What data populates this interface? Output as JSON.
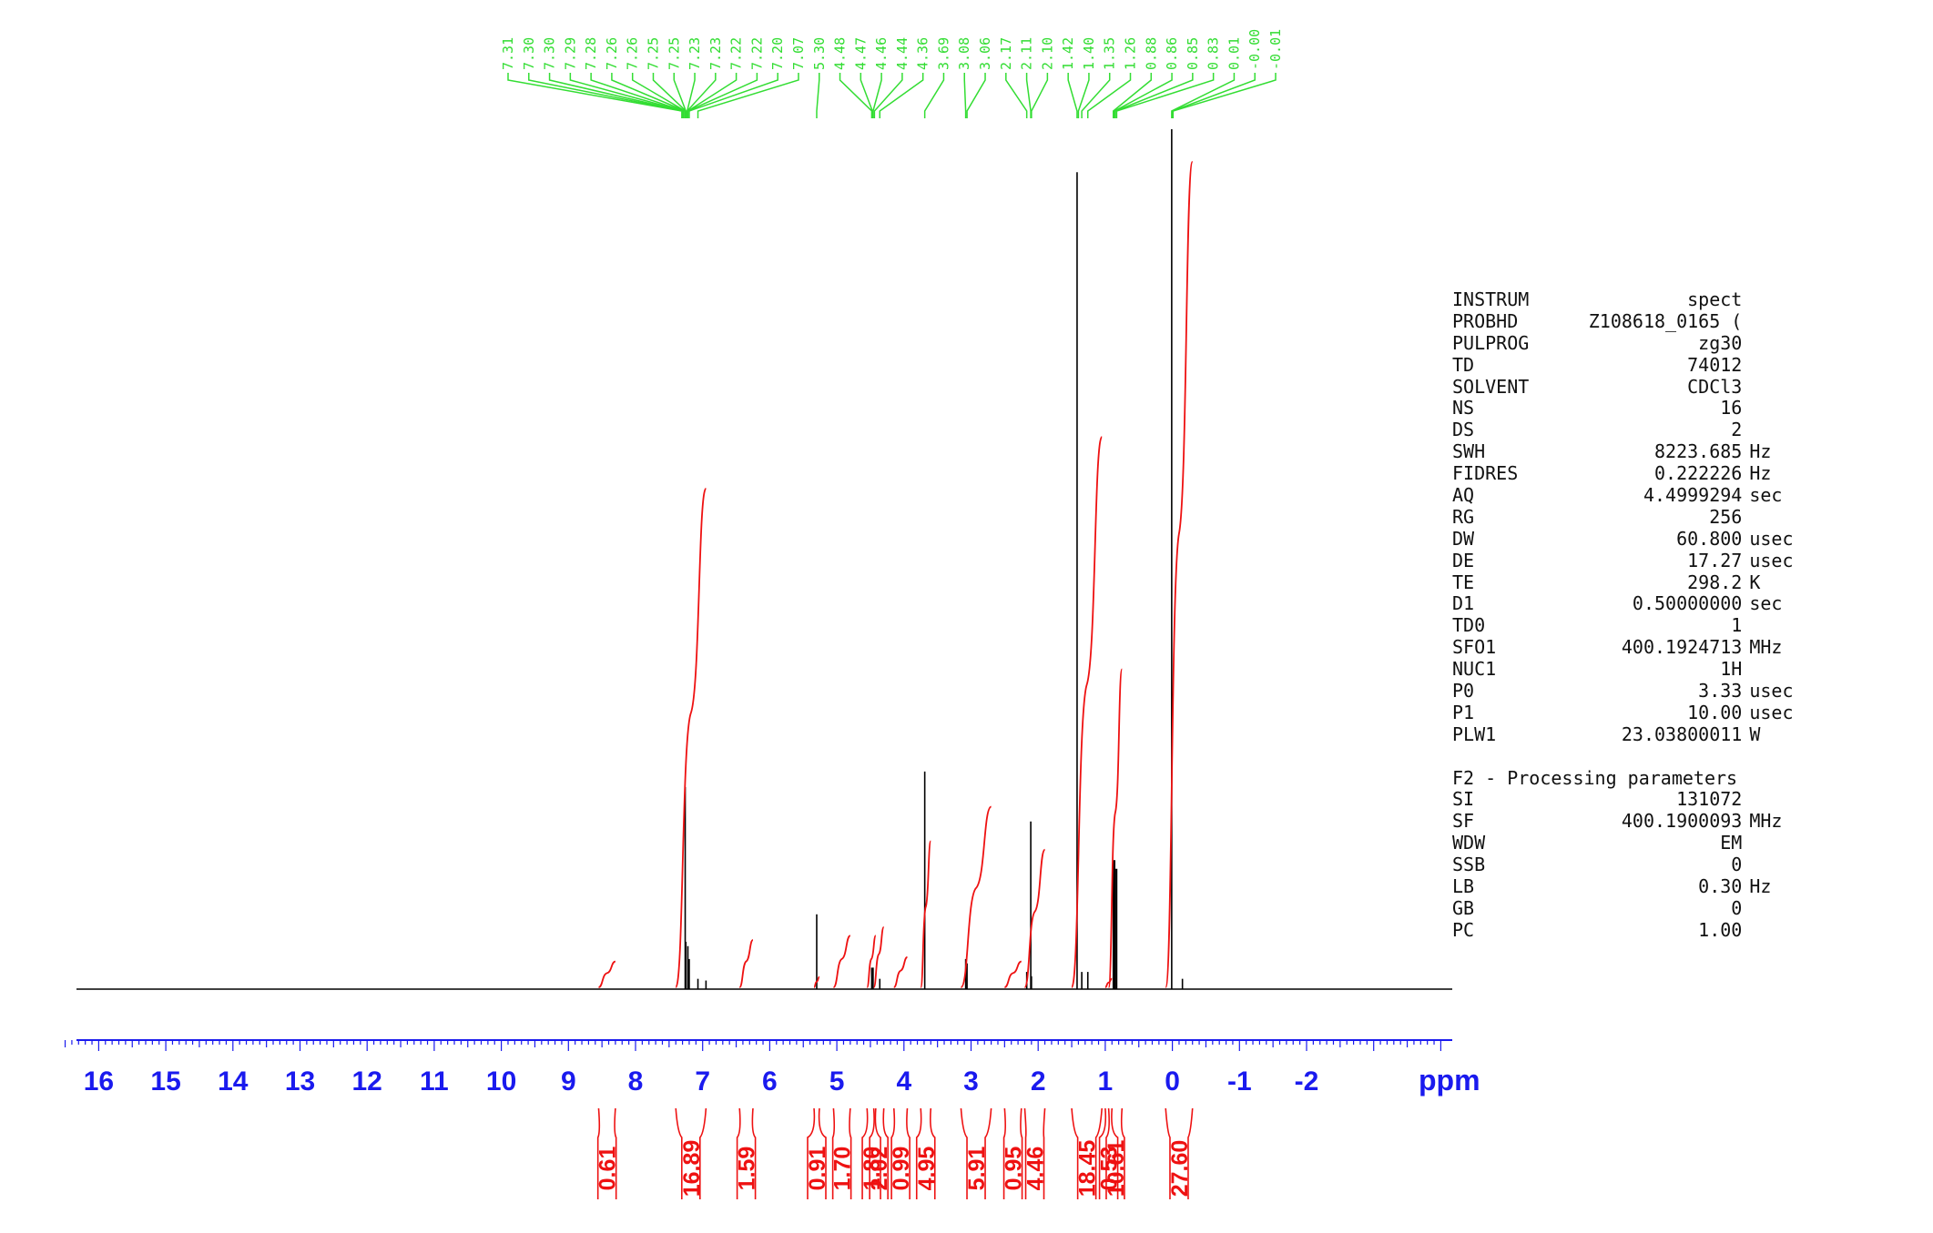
{
  "chart_data": {
    "type": "line",
    "x_axis": {
      "unit_label": "ppm",
      "reversed": true,
      "range": [
        16.5,
        -4.0
      ],
      "tick_labels": [
        "16",
        "15",
        "14",
        "13",
        "12",
        "11",
        "10",
        "9",
        "8",
        "7",
        "6",
        "5",
        "4",
        "3",
        "2",
        "1",
        "0",
        "-1",
        "-2"
      ]
    },
    "peak_labels": [
      "7.31",
      "7.30",
      "7.30",
      "7.29",
      "7.28",
      "7.26",
      "7.26",
      "7.25",
      "7.25",
      "7.23",
      "7.23",
      "7.22",
      "7.22",
      "7.20",
      "7.07",
      "5.30",
      "4.48",
      "4.47",
      "4.46",
      "4.44",
      "4.36",
      "3.69",
      "3.08",
      "3.06",
      "2.17",
      "2.11",
      "2.10",
      "1.42",
      "1.40",
      "1.35",
      "1.26",
      "0.88",
      "0.86",
      "0.85",
      "0.83",
      "0.01",
      "-0.00",
      "-0.01"
    ],
    "peaks": [
      {
        "ppm": 7.26,
        "height": 0.235
      },
      {
        "ppm": 7.25,
        "height": 0.055
      },
      {
        "ppm": 7.22,
        "height": 0.05
      },
      {
        "ppm": 7.2,
        "height": 0.035
      },
      {
        "ppm": 7.07,
        "height": 0.012
      },
      {
        "ppm": 6.95,
        "height": 0.01
      },
      {
        "ppm": 5.3,
        "height": 0.087
      },
      {
        "ppm": 4.48,
        "height": 0.025
      },
      {
        "ppm": 4.46,
        "height": 0.025
      },
      {
        "ppm": 4.36,
        "height": 0.012
      },
      {
        "ppm": 3.69,
        "height": 0.253
      },
      {
        "ppm": 3.08,
        "height": 0.035
      },
      {
        "ppm": 3.06,
        "height": 0.03
      },
      {
        "ppm": 2.17,
        "height": 0.02
      },
      {
        "ppm": 2.11,
        "height": 0.195
      },
      {
        "ppm": 2.1,
        "height": 0.015
      },
      {
        "ppm": 1.42,
        "height": 0.95
      },
      {
        "ppm": 1.35,
        "height": 0.02
      },
      {
        "ppm": 1.26,
        "height": 0.02
      },
      {
        "ppm": 0.88,
        "height": 0.15
      },
      {
        "ppm": 0.86,
        "height": 0.15
      },
      {
        "ppm": 0.85,
        "height": 0.14
      },
      {
        "ppm": 0.83,
        "height": 0.14
      },
      {
        "ppm": 0.01,
        "height": 1.0
      },
      {
        "ppm": -0.15,
        "height": 0.012
      }
    ],
    "integrals": [
      {
        "label": "0.61",
        "from": 8.55,
        "to": 8.3,
        "rise": 0.03
      },
      {
        "label": "16.89",
        "from": 7.4,
        "to": 6.95,
        "rise": 0.58
      },
      {
        "label": "1.59",
        "from": 6.45,
        "to": 6.25,
        "rise": 0.055
      },
      {
        "label": "0.91",
        "from": 5.34,
        "to": 5.26,
        "rise": 0.012
      },
      {
        "label": "1.70",
        "from": 5.05,
        "to": 4.8,
        "rise": 0.06
      },
      {
        "label": "1.80",
        "from": 4.55,
        "to": 4.42,
        "rise": 0.06
      },
      {
        "label": "2.02",
        "from": 4.45,
        "to": 4.3,
        "rise": 0.07
      },
      {
        "label": "0.99",
        "from": 4.15,
        "to": 3.95,
        "rise": 0.035
      },
      {
        "label": "4.95",
        "from": 3.75,
        "to": 3.6,
        "rise": 0.17
      },
      {
        "label": "5.91",
        "from": 3.15,
        "to": 2.7,
        "rise": 0.21
      },
      {
        "label": "0.95",
        "from": 2.5,
        "to": 2.25,
        "rise": 0.03
      },
      {
        "label": "4.46",
        "from": 2.2,
        "to": 1.9,
        "rise": 0.16
      },
      {
        "label": "18.45",
        "from": 1.5,
        "to": 1.05,
        "rise": 0.64
      },
      {
        "label": "0.53",
        "from": 1.0,
        "to": 0.9,
        "rise": 0.01
      },
      {
        "label": "10.61",
        "from": 0.95,
        "to": 0.75,
        "rise": 0.37
      },
      {
        "label": "27.60",
        "from": 0.1,
        "to": -0.3,
        "rise": 0.96
      }
    ]
  },
  "parameters": {
    "acquisition": [
      {
        "key": "INSTRUM",
        "value": "spect",
        "unit": ""
      },
      {
        "key": "PROBHD",
        "value": "Z108618_0165 (",
        "unit": ""
      },
      {
        "key": "PULPROG",
        "value": "zg30",
        "unit": ""
      },
      {
        "key": "TD",
        "value": "74012",
        "unit": ""
      },
      {
        "key": "SOLVENT",
        "value": "CDCl3",
        "unit": ""
      },
      {
        "key": "NS",
        "value": "16",
        "unit": ""
      },
      {
        "key": "DS",
        "value": "2",
        "unit": ""
      },
      {
        "key": "SWH",
        "value": "8223.685",
        "unit": "Hz"
      },
      {
        "key": "FIDRES",
        "value": "0.222226",
        "unit": "Hz"
      },
      {
        "key": "AQ",
        "value": "4.4999294",
        "unit": "sec"
      },
      {
        "key": "RG",
        "value": "256",
        "unit": ""
      },
      {
        "key": "DW",
        "value": "60.800",
        "unit": "usec"
      },
      {
        "key": "DE",
        "value": "17.27",
        "unit": "usec"
      },
      {
        "key": "TE",
        "value": "298.2",
        "unit": "K"
      },
      {
        "key": "D1",
        "value": "0.50000000",
        "unit": "sec"
      },
      {
        "key": "TD0",
        "value": "1",
        "unit": ""
      },
      {
        "key": "SFO1",
        "value": "400.1924713",
        "unit": "MHz"
      },
      {
        "key": "NUC1",
        "value": "1H",
        "unit": ""
      },
      {
        "key": "P0",
        "value": "3.33",
        "unit": "usec"
      },
      {
        "key": "P1",
        "value": "10.00",
        "unit": "usec"
      },
      {
        "key": "PLW1",
        "value": "23.03800011",
        "unit": "W"
      }
    ],
    "processing_title": "F2 - Processing parameters",
    "processing": [
      {
        "key": "SI",
        "value": "131072",
        "unit": ""
      },
      {
        "key": "SF",
        "value": "400.1900093",
        "unit": "MHz"
      },
      {
        "key": "WDW",
        "value": "EM",
        "unit": ""
      },
      {
        "key": "SSB",
        "value": "0",
        "unit": ""
      },
      {
        "key": "LB",
        "value": "0.30",
        "unit": "Hz"
      },
      {
        "key": "GB",
        "value": "0",
        "unit": ""
      },
      {
        "key": "PC",
        "value": "1.00",
        "unit": ""
      }
    ]
  },
  "colors": {
    "spectrum": "#000000",
    "peak_labels": "#33dd33",
    "integrals": "#ee1111",
    "axis": "#1a1aee"
  }
}
